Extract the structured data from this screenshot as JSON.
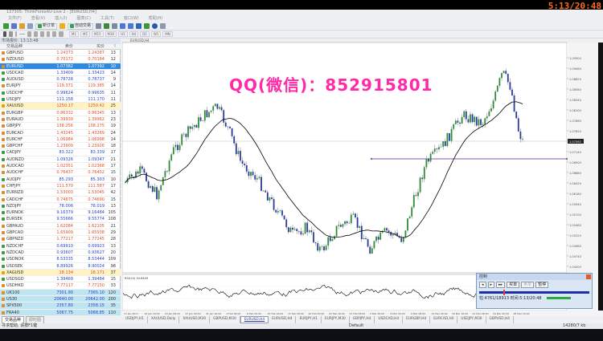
{
  "clock": "5:13/20:48",
  "window_title": "137305: ThinkForexAU-Live 2 - [EURUSD,H4]",
  "menu": [
    "文件(F)",
    "查看(V)",
    "插入(I)",
    "图表(C)",
    "工具(T)",
    "窗口(W)",
    "帮助(H)"
  ],
  "toolbar": {
    "new_order": "新订单",
    "auto_trading": "自动交易",
    "timeframes": [
      "M1",
      "M5",
      "M15",
      "M30",
      "H1",
      "H4",
      "D1",
      "W1",
      "MN"
    ]
  },
  "market_watch": {
    "title": "市场报价: 13:13:48",
    "columns": [
      "交易品种",
      "卖价",
      "买价",
      "!"
    ],
    "rows": [
      [
        "GBPUSD",
        "1.24373",
        "1.24387",
        "13",
        "up"
      ],
      [
        "NZDUSD",
        "0.70172",
        "0.70184",
        "12",
        "up"
      ],
      [
        "EURUSD",
        "1.07382",
        "1.07392",
        "10",
        "sel"
      ],
      [
        "USDCAD",
        "1.33409",
        "1.33423",
        "14",
        "dn"
      ],
      [
        "AUDUSD",
        "0.78728",
        "0.78737",
        "9",
        "dn"
      ],
      [
        "EURJPY",
        "119.371",
        "119.385",
        "14",
        "up"
      ],
      [
        "USDCHF",
        "0.99624",
        "0.99635",
        "11",
        "dn"
      ],
      [
        "USDJPY",
        "111.158",
        "111.170",
        "11",
        "dn"
      ],
      [
        "XAUUSD",
        "1250.17",
        "1250.42",
        "25",
        "gold"
      ],
      [
        "EURGBP",
        "0.86332",
        "0.86345",
        "13",
        "up"
      ],
      [
        "EURAUD",
        "1.39939",
        "1.39962",
        "23",
        "up"
      ],
      [
        "GBPJPY",
        "138.256",
        "138.275",
        "19",
        "up"
      ],
      [
        "EURCAD",
        "1.43245",
        "1.43269",
        "24",
        "up"
      ],
      [
        "EURCHF",
        "1.06984",
        "1.06998",
        "14",
        "up"
      ],
      [
        "GBPCHF",
        "1.23909",
        "1.23926",
        "18",
        "up"
      ],
      [
        "CADJPY",
        "83.322",
        "83.339",
        "17",
        "dn"
      ],
      [
        "AUDNZD",
        "1.09326",
        "1.09347",
        "21",
        "dn"
      ],
      [
        "AUDCAD",
        "1.02351",
        "1.02368",
        "17",
        "up"
      ],
      [
        "AUDCHF",
        "0.76437",
        "0.76452",
        "15",
        "up"
      ],
      [
        "AUDJPY",
        "85.293",
        "85.303",
        "10",
        "dn"
      ],
      [
        "CHFJPY",
        "111.570",
        "111.587",
        "17",
        "up"
      ],
      [
        "EURNZD",
        "1.53003",
        "1.53045",
        "42",
        "up"
      ],
      [
        "CADCHF",
        "0.74675",
        "0.74690",
        "15",
        "up"
      ],
      [
        "NZDJPY",
        "78.006",
        "78.019",
        "13",
        "dn"
      ],
      [
        "EURNOK",
        "9.16379",
        "9.16484",
        "105",
        "dn"
      ],
      [
        "EURSEK",
        "9.55666",
        "9.55774",
        "108",
        "dn"
      ],
      [
        "GBPAUD",
        "1.62084",
        "1.62105",
        "21",
        "up"
      ],
      [
        "GBPCAD",
        "1.65909",
        "1.65938",
        "29",
        "up"
      ],
      [
        "GBPNZD",
        "1.77217",
        "1.77245",
        "28",
        "up"
      ],
      [
        "NZDCHF",
        "0.69910",
        "0.69923",
        "13",
        "dn"
      ],
      [
        "NZDCAD",
        "0.93607",
        "0.93627",
        "20",
        "dn"
      ],
      [
        "USDNOK",
        "8.53335",
        "8.53444",
        "109",
        "dn"
      ],
      [
        "USDSEK",
        "8.89926",
        "8.90024",
        "98",
        "dn"
      ],
      [
        "XAGUSD",
        "18.134",
        "18.171",
        "37",
        "gold"
      ],
      [
        "USDSGD",
        "1.39469",
        "1.39484",
        "15",
        "dn"
      ],
      [
        "USDHKD",
        "7.77117",
        "7.77150",
        "33",
        "up"
      ],
      [
        "UK100",
        "7301.90",
        "7365.10",
        "120",
        "idx"
      ],
      [
        "US30",
        "20640.00",
        "20642.00",
        "200",
        "idx"
      ],
      [
        "SPX500",
        "2357.80",
        "2358.15",
        "35",
        "idx"
      ],
      [
        "FRA40",
        "5067.75",
        "5068.85",
        "110",
        "idx"
      ]
    ],
    "tabs": [
      "交易品种",
      "即时图"
    ]
  },
  "chart": {
    "symbol_label": "EURUSD,H4",
    "current_price": "1.07392",
    "price_labels": [
      "1.09300",
      "1.09060",
      "1.08820",
      "1.08580",
      "1.08340",
      "1.08100",
      "1.07860",
      "1.07620",
      "1.07392",
      "1.07140",
      "1.06900",
      "1.06660",
      "1.06420",
      "1.06180",
      "1.05940",
      "1.05700",
      "1.05460",
      "1.05220",
      "1.04980",
      "1.04740",
      "1.04500"
    ],
    "indicator_label": "RSI(14) 34.8409",
    "time_labels": [
      "17 Jan 2017",
      "19 Jan 16:00",
      "24 Jan 08:00",
      "27 Jan 00:00",
      "31 Jan 16:00",
      "3 Feb 08:00",
      "8 Feb 00:00",
      "10 Feb 16:00",
      "15 Feb 08:00",
      "20 Feb 00:00",
      "22 Feb 16:00",
      "27 Feb 08:00",
      "2 Mar 00:00",
      "6 Mar 16:00",
      "9 Mar 08:00",
      "14 Mar 00:00",
      "16 Mar 16:00",
      "21 Mar 08:00",
      "24 Mar 00:00",
      "28 Mar 16:00"
    ],
    "watermark": "QQ(微信)：852915801",
    "colors": {
      "bull": "#2e8b3a",
      "bear": "#2a3c9a",
      "ma": "#000000",
      "level_line": "#8a5aa8",
      "watermark": "#ff2aa8"
    }
  },
  "tester_dialog": {
    "title": "控制",
    "buttons": [
      "买单",
      "卖单",
      "暂停"
    ],
    "status": "柱:4761/18913  时间:5:13/20:48"
  },
  "chart_tabs": [
    "USDJPY,H1",
    "XAUUSD,Daily",
    "XAUUSD,M30",
    "GBPUSD,M30",
    "EURUSD,H4",
    "EURUSD,H4",
    "EURJPY,H1",
    "EURJPY,M30",
    "GBPJPY,H4",
    "USDCAD,H4",
    "EURGBP,H4",
    "EURCAD,H4",
    "USDJPY,M30",
    "GBPUSD,H4"
  ],
  "active_tab": 4,
  "status_bar": {
    "help": "寻求帮助, 请按F1键",
    "profile": "Default",
    "traffic": "14280/7 kb"
  }
}
